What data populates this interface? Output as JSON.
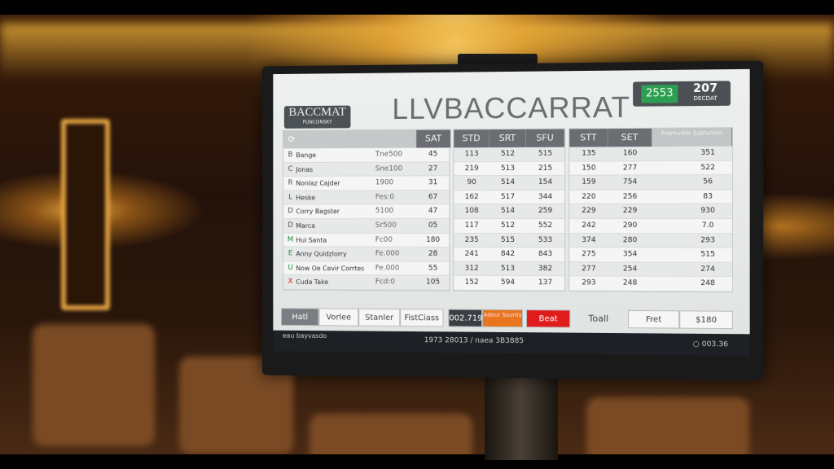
{
  "screen": {
    "logo": {
      "title": "BACCMAT",
      "subtitle": "PUNCONSKY"
    },
    "title": "LLVBACCARRAT",
    "score": {
      "value": "2553",
      "right_value": "207",
      "right_label": "DECDAT",
      "accent": "#2e9e53"
    },
    "left_table": {
      "icon": "refresh-icon",
      "header": "SAT",
      "rows": [
        {
          "mark": "B",
          "name": "Bange",
          "amount": "Tne500",
          "sat": "45"
        },
        {
          "mark": "C",
          "name": "Jonas",
          "amount": "Sne100",
          "sat": "27"
        },
        {
          "mark": "R",
          "name": "Nonlaz Cajder",
          "amount": "1900",
          "sat": "31"
        },
        {
          "mark": "L",
          "name": "Heske",
          "amount": "Fes:0",
          "sat": "67"
        },
        {
          "mark": "D",
          "name": "Corry Bagster",
          "amount": "5100",
          "sat": "47"
        },
        {
          "mark": "D",
          "name": "Marca",
          "amount": "Sr500",
          "sat": "05"
        },
        {
          "mark": "M",
          "name": "Hul Santa",
          "amount": "Fc00",
          "sat": "180"
        },
        {
          "mark": "E",
          "name": "Anny Quidzlorry",
          "amount": "Fe.000",
          "sat": "28"
        },
        {
          "mark": "U",
          "name": "Now Oe Cevir Corrtes",
          "amount": "Fe.000",
          "sat": "55"
        },
        {
          "mark": "X",
          "name": "Cuda Take",
          "amount": "Fcd:0",
          "sat": "105"
        }
      ]
    },
    "mid_table": {
      "headers": [
        "STD",
        "SRT",
        "SFU"
      ],
      "rows": [
        [
          "113",
          "512",
          "515"
        ],
        [
          "219",
          "513",
          "215"
        ],
        [
          "90",
          "514",
          "154"
        ],
        [
          "162",
          "517",
          "344"
        ],
        [
          "108",
          "514",
          "259"
        ],
        [
          "117",
          "512",
          "552"
        ],
        [
          "235",
          "515",
          "533"
        ],
        [
          "241",
          "842",
          "843"
        ],
        [
          "312",
          "513",
          "382"
        ],
        [
          "152",
          "594",
          "137"
        ]
      ]
    },
    "right_table": {
      "headers": [
        "STT",
        "SET",
        "Fosmuddo Eastumllo"
      ],
      "rows": [
        [
          "135",
          "160",
          "351"
        ],
        [
          "150",
          "277",
          "522"
        ],
        [
          "159",
          "754",
          "56"
        ],
        [
          "220",
          "256",
          "83"
        ],
        [
          "229",
          "229",
          "930"
        ],
        [
          "242",
          "290",
          "7.0"
        ],
        [
          "374",
          "280",
          "293"
        ],
        [
          "275",
          "354",
          "515"
        ],
        [
          "277",
          "254",
          "274"
        ],
        [
          "293",
          "248",
          "248"
        ]
      ]
    },
    "buttons": {
      "tabs": [
        "Hatl",
        "Vorlee",
        "Stanler",
        "FistCiass"
      ],
      "counter": "002.719",
      "orange": "Adour Sounts",
      "orange_color": "#e8761e",
      "red": "Beat",
      "red_color": "#e01b1b",
      "total_label": "Toall",
      "fret": "Fret",
      "amount": "$180"
    },
    "status": {
      "left": "eau bayvasdo",
      "center": "1973 28013 / naea 3B3885",
      "right": "003.36"
    }
  }
}
